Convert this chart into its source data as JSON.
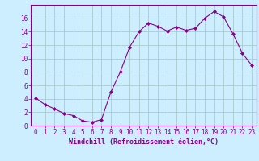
{
  "x": [
    0,
    1,
    2,
    3,
    4,
    5,
    6,
    7,
    8,
    9,
    10,
    11,
    12,
    13,
    14,
    15,
    16,
    17,
    18,
    19,
    20,
    21,
    22,
    23
  ],
  "y": [
    4.1,
    3.1,
    2.5,
    1.8,
    1.5,
    0.7,
    0.5,
    0.9,
    5.0,
    8.0,
    11.7,
    14.0,
    15.3,
    14.8,
    14.1,
    14.7,
    14.2,
    14.5,
    16.0,
    17.0,
    16.2,
    13.7,
    10.8,
    9.0
  ],
  "line_color": "#880088",
  "marker": "D",
  "marker_size": 2.0,
  "bg_color": "#cceeff",
  "grid_color": "#aacccc",
  "xlabel": "Windchill (Refroidissement éolien,°C)",
  "ylabel": "",
  "ylim": [
    0,
    18
  ],
  "xlim_min": -0.5,
  "xlim_max": 23.5,
  "yticks": [
    0,
    2,
    4,
    6,
    8,
    10,
    12,
    14,
    16
  ],
  "xticks": [
    0,
    1,
    2,
    3,
    4,
    5,
    6,
    7,
    8,
    9,
    10,
    11,
    12,
    13,
    14,
    15,
    16,
    17,
    18,
    19,
    20,
    21,
    22,
    23
  ],
  "tick_color": "#880088",
  "label_color": "#880088",
  "spine_color": "#880088",
  "font_size": 5.5,
  "xlabel_fontsize": 6.0
}
